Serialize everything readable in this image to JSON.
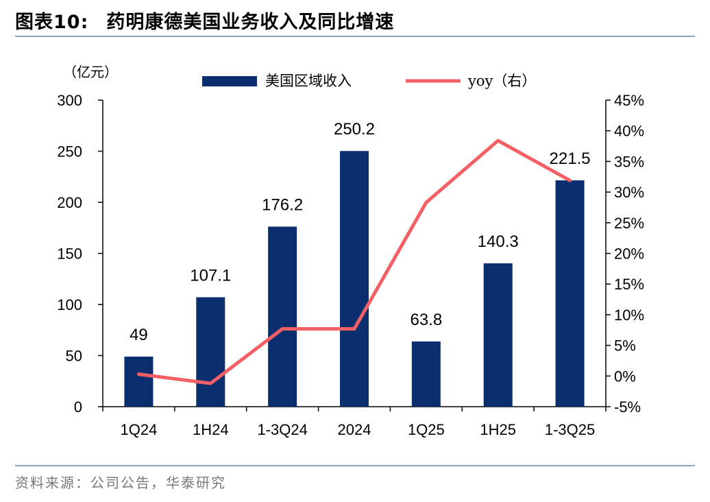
{
  "header": {
    "figure_label": "图表10:",
    "title": "药明康德美国业务收入及同比增速"
  },
  "source": "资料来源：公司公告，华泰研究",
  "chart_data": {
    "type": "bar",
    "title": "药明康德美国业务收入及同比增速",
    "categories": [
      "1Q24",
      "1H24",
      "1-3Q24",
      "2024",
      "1Q25",
      "1H25",
      "1-3Q25"
    ],
    "series": [
      {
        "name": "美国区域收入",
        "type": "bar",
        "axis": "left",
        "color": "#0b2f6e",
        "values": [
          49,
          107.1,
          176.2,
          250.2,
          63.8,
          140.3,
          221.5
        ],
        "labels": [
          "49",
          "107.1",
          "176.2",
          "250.2",
          "63.8",
          "140.3",
          "221.5"
        ]
      },
      {
        "name": "yoy（右）",
        "type": "line",
        "axis": "right",
        "color": "#f26065",
        "values": [
          0.3,
          -1.2,
          7.7,
          7.7,
          28.3,
          38.4,
          31.9
        ]
      }
    ],
    "ylabel": "（亿元）",
    "ylim": [
      0,
      300
    ],
    "yticks": [
      0,
      50,
      100,
      150,
      200,
      250,
      300
    ],
    "ytick_labels": [
      "0",
      "50",
      "100",
      "150",
      "200",
      "250",
      "300"
    ],
    "y2lim": [
      -5,
      45
    ],
    "y2ticks": [
      -5,
      0,
      5,
      10,
      15,
      20,
      25,
      30,
      35,
      40,
      45
    ],
    "y2tick_labels": [
      "-5%",
      "0%",
      "5%",
      "10%",
      "15%",
      "20%",
      "25%",
      "30%",
      "35%",
      "40%",
      "45%"
    ],
    "legend": {
      "position": "top",
      "bar_label": "美国区域收入",
      "line_label": "yoy（右）"
    }
  }
}
